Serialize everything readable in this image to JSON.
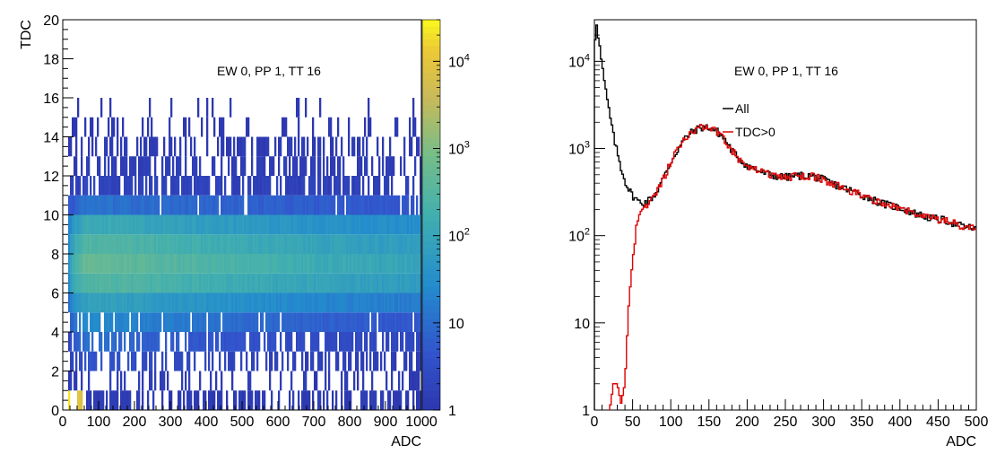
{
  "chart_data": [
    {
      "type": "heatmap",
      "title": "EW 0, PP 1, TT 16",
      "xlabel": "ADC",
      "ylabel": "TDC",
      "xlim": [
        0,
        1000
      ],
      "ylim": [
        0,
        20
      ],
      "xticks": [
        0,
        100,
        200,
        300,
        400,
        500,
        600,
        700,
        800,
        900,
        1000
      ],
      "yticks": [
        0,
        2,
        4,
        6,
        8,
        10,
        12,
        14,
        16,
        18,
        20
      ],
      "color_scale": "log",
      "zlim": [
        1,
        30000
      ],
      "colorbar_ticks": [
        {
          "value": 1,
          "base": "1",
          "exp": ""
        },
        {
          "value": 10,
          "base": "10",
          "exp": ""
        },
        {
          "value": 100,
          "base": "10",
          "exp": "2"
        },
        {
          "value": 1000,
          "base": "10",
          "exp": "3"
        },
        {
          "value": 10000,
          "base": "10",
          "exp": "4"
        }
      ],
      "tdc_profile": [
        {
          "y": 0,
          "peak": 20000,
          "decay": 30,
          "floor": 1.3,
          "fill": 0.55
        },
        {
          "y": 1,
          "peak": 1.5,
          "decay": 200,
          "floor": 1.2,
          "fill": 0.25
        },
        {
          "y": 2,
          "peak": 4,
          "decay": 200,
          "floor": 1.5,
          "fill": 0.5
        },
        {
          "y": 3,
          "peak": 10,
          "decay": 250,
          "floor": 2,
          "fill": 0.7
        },
        {
          "y": 4,
          "peak": 25,
          "decay": 300,
          "floor": 4,
          "fill": 0.9
        },
        {
          "y": 5,
          "peak": 80,
          "decay": 350,
          "floor": 10,
          "fill": 1.0
        },
        {
          "y": 6,
          "peak": 300,
          "decay": 400,
          "floor": 30,
          "fill": 1.0
        },
        {
          "y": 7,
          "peak": 500,
          "decay": 400,
          "floor": 40,
          "fill": 1.0
        },
        {
          "y": 8,
          "peak": 300,
          "decay": 400,
          "floor": 30,
          "fill": 1.0
        },
        {
          "y": 9,
          "peak": 120,
          "decay": 400,
          "floor": 18,
          "fill": 1.0
        },
        {
          "y": 10,
          "peak": 12,
          "decay": 400,
          "floor": 4,
          "fill": 0.95
        },
        {
          "y": 11,
          "peak": 2,
          "decay": 400,
          "floor": 1.5,
          "fill": 0.7
        },
        {
          "y": 12,
          "peak": 1.5,
          "decay": 400,
          "floor": 1.3,
          "fill": 0.55
        },
        {
          "y": 13,
          "peak": 1.3,
          "decay": 400,
          "floor": 1.2,
          "fill": 0.4
        },
        {
          "y": 14,
          "peak": 1.1,
          "decay": 400,
          "floor": 1.0,
          "fill": 0.25
        },
        {
          "y": 15,
          "peak": 1.0,
          "decay": 400,
          "floor": 1.0,
          "fill": 0.06
        }
      ]
    },
    {
      "type": "line",
      "title": "EW 0, PP 1, TT 16",
      "xlabel": "ADC",
      "ylabel": "",
      "xlim": [
        0,
        500
      ],
      "ylim": [
        1,
        30000
      ],
      "yscale": "log",
      "xticks": [
        0,
        50,
        100,
        150,
        200,
        250,
        300,
        350,
        400,
        450,
        500
      ],
      "yticks": [
        {
          "value": 1,
          "base": "1",
          "exp": ""
        },
        {
          "value": 10,
          "base": "10",
          "exp": ""
        },
        {
          "value": 100,
          "base": "10",
          "exp": "2"
        },
        {
          "value": 1000,
          "base": "10",
          "exp": "3"
        },
        {
          "value": 10000,
          "base": "10",
          "exp": "4"
        }
      ],
      "legend_placement": "top-center",
      "series": [
        {
          "name": "All",
          "color": "#000000",
          "x": [
            0,
            3,
            5,
            10,
            15,
            20,
            25,
            30,
            35,
            40,
            45,
            50,
            55,
            60,
            65,
            70,
            80,
            90,
            100,
            110,
            120,
            130,
            140,
            150,
            160,
            170,
            180,
            190,
            200,
            210,
            220,
            230,
            240,
            250,
            260,
            270,
            280,
            290,
            300,
            320,
            340,
            360,
            380,
            400,
            420,
            440,
            460,
            480,
            500
          ],
          "y": [
            15000,
            28000,
            20000,
            9000,
            4500,
            2500,
            1400,
            900,
            600,
            430,
            340,
            290,
            260,
            240,
            240,
            250,
            300,
            450,
            700,
            1000,
            1350,
            1600,
            1750,
            1750,
            1600,
            1300,
            950,
            750,
            640,
            580,
            530,
            500,
            480,
            470,
            480,
            490,
            490,
            470,
            440,
            370,
            320,
            270,
            230,
            210,
            180,
            160,
            150,
            130,
            120
          ]
        },
        {
          "name": "TDC>0",
          "color": "#dd0000",
          "x": [
            20,
            25,
            30,
            35,
            40,
            45,
            50,
            55,
            60,
            65,
            70,
            80,
            90,
            100,
            110,
            120,
            130,
            140,
            150,
            160,
            170,
            180,
            190,
            200,
            210,
            220,
            230,
            240,
            250,
            260,
            270,
            280,
            290,
            300,
            320,
            340,
            360,
            380,
            400,
            420,
            440,
            460,
            480,
            500
          ],
          "y": [
            1,
            2,
            2,
            1.2,
            2,
            15,
            50,
            120,
            180,
            210,
            230,
            290,
            440,
            690,
            1000,
            1350,
            1600,
            1750,
            1750,
            1600,
            1300,
            950,
            750,
            640,
            580,
            530,
            500,
            480,
            470,
            480,
            490,
            490,
            470,
            440,
            370,
            320,
            270,
            230,
            210,
            180,
            160,
            150,
            130,
            120
          ]
        }
      ]
    }
  ]
}
